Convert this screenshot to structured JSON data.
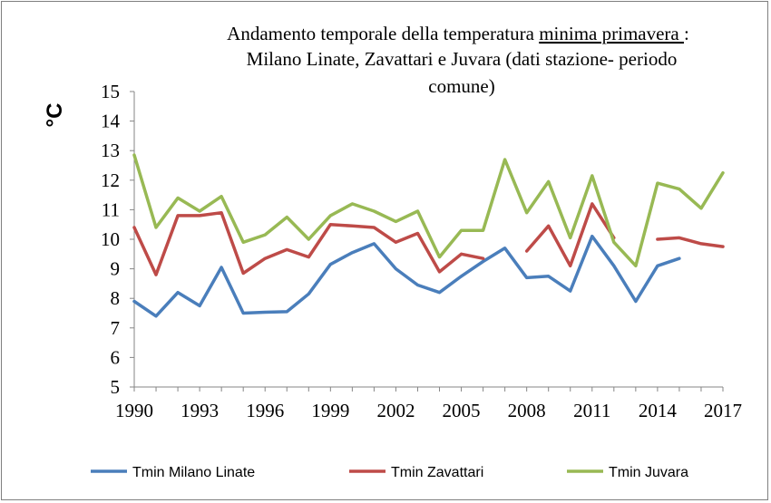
{
  "chart_data": {
    "type": "line",
    "title_line1_pre": "Andamento temporale della temperatura ",
    "title_line1_underlined": "minima primavera ",
    "title_line1_post": ":",
    "title_line2": "Milano Linate,  Zavattari e  Juvara (dati stazione- periodo",
    "title_line3": "comune)",
    "xlabel": "",
    "ylabel": "°C",
    "ylim": [
      5,
      15
    ],
    "yticks": [
      5,
      6,
      7,
      8,
      9,
      10,
      11,
      12,
      13,
      14,
      15
    ],
    "xlim": [
      1990,
      2017
    ],
    "xticks": [
      1990,
      1993,
      1996,
      1999,
      2002,
      2005,
      2008,
      2011,
      2014,
      2017
    ],
    "legend_position": "bottom",
    "series": [
      {
        "name": "Tmin  Milano Linate",
        "color": "#4a7ebb",
        "x": [
          1990,
          1991,
          1992,
          1993,
          1994,
          1995,
          1996,
          1997,
          1998,
          1999,
          2000,
          2001,
          2002,
          2003,
          2004,
          2005,
          2006,
          2007,
          2008,
          2009,
          2010,
          2011,
          2012,
          2013,
          2014,
          2015
        ],
        "values": [
          7.9,
          7.4,
          8.2,
          7.75,
          9.05,
          7.5,
          7.53,
          7.55,
          8.15,
          9.15,
          9.55,
          9.85,
          9.0,
          8.45,
          8.2,
          8.75,
          9.25,
          9.7,
          8.7,
          8.75,
          8.25,
          10.1,
          9.1,
          7.9,
          9.1,
          9.35
        ]
      },
      {
        "name": "Tmin Zavattari",
        "color": "#be4b48",
        "x": [
          1990,
          1991,
          1992,
          1993,
          1994,
          1995,
          1996,
          1997,
          1998,
          1999,
          2000,
          2001,
          2002,
          2003,
          2004,
          2005,
          2006,
          null,
          2008,
          2009,
          2010,
          2011,
          2012,
          null,
          2014,
          2015,
          2016,
          2017
        ],
        "values": [
          10.4,
          8.8,
          10.8,
          10.8,
          10.9,
          8.85,
          9.35,
          9.65,
          9.4,
          10.5,
          10.45,
          10.4,
          9.9,
          10.2,
          8.9,
          9.5,
          9.35,
          null,
          9.6,
          10.45,
          9.1,
          11.2,
          10.05,
          null,
          10.0,
          10.05,
          9.85,
          9.75
        ]
      },
      {
        "name": "Tmin Juvara",
        "color": "#98b954",
        "x": [
          1990,
          1991,
          1992,
          1993,
          1994,
          1995,
          1996,
          1997,
          1998,
          1999,
          2000,
          2001,
          2002,
          2003,
          2004,
          2005,
          2006,
          2007,
          2008,
          2009,
          2010,
          2011,
          2012,
          2013,
          2014,
          2015,
          2016,
          2017
        ],
        "values": [
          12.85,
          10.4,
          11.4,
          10.95,
          11.45,
          9.9,
          10.15,
          10.75,
          10.0,
          10.8,
          11.2,
          10.95,
          10.6,
          10.95,
          9.4,
          10.3,
          10.3,
          12.7,
          10.9,
          11.95,
          10.05,
          12.15,
          9.9,
          9.1,
          11.9,
          11.7,
          11.05,
          12.25
        ]
      }
    ]
  }
}
